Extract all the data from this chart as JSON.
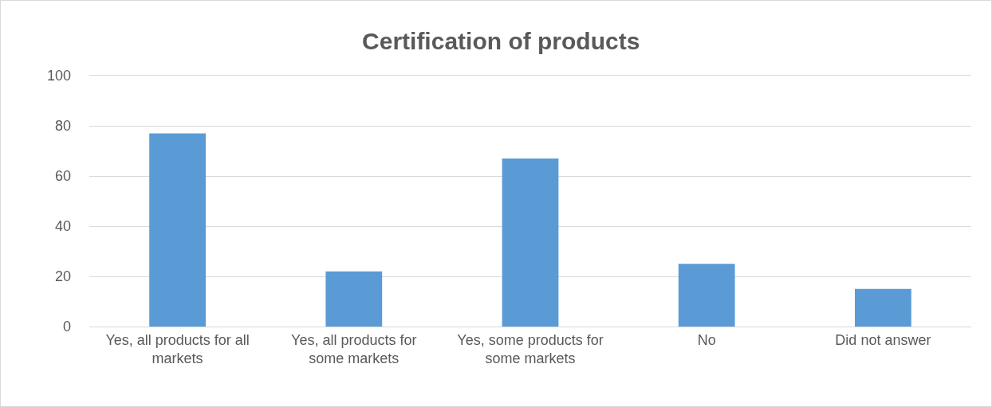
{
  "chart_data": {
    "type": "bar",
    "title": "Certification of products",
    "categories": [
      "Yes, all products for all markets",
      "Yes, all products for some markets",
      "Yes, some products for some markets",
      "No",
      "Did not answer"
    ],
    "values": [
      77,
      22,
      67,
      25,
      15
    ],
    "color": "#5b9bd5",
    "ylim": [
      0,
      100
    ],
    "yticks": [
      0,
      20,
      40,
      60,
      80,
      100
    ],
    "grid": "y"
  }
}
